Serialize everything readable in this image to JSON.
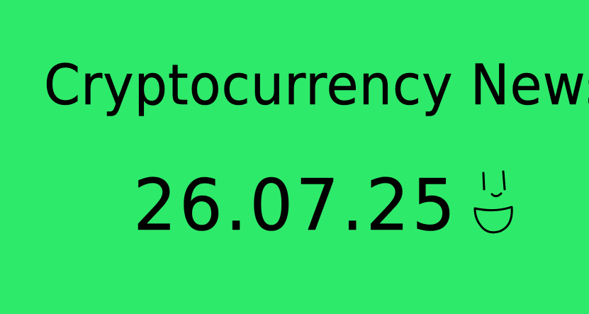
{
  "title": "Cryptocurrency News",
  "date": "26.07.25",
  "background_color": "#2EEA6A",
  "ink_color": "#000000",
  "decoration_icon": "smiley-face-icon"
}
